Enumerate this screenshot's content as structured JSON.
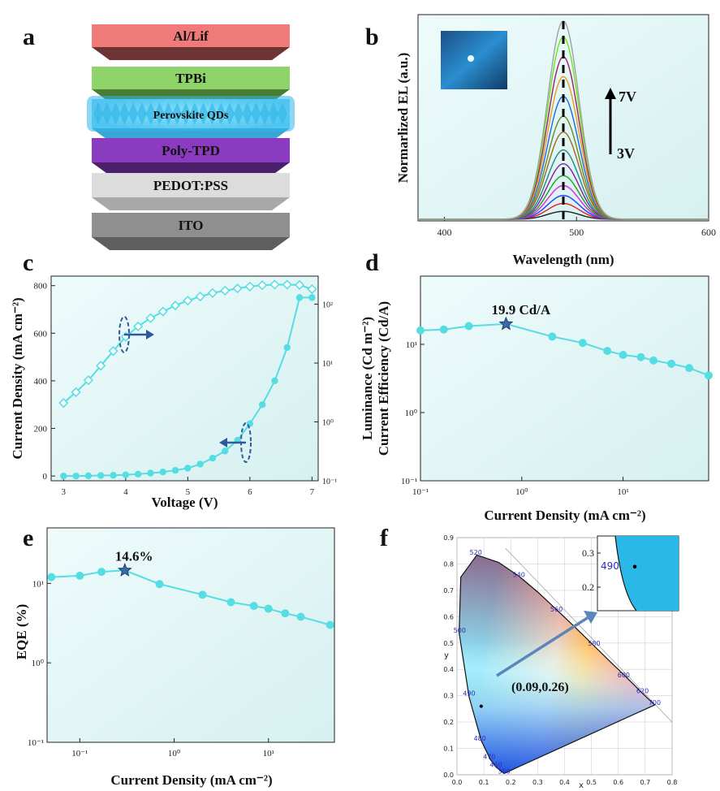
{
  "panel_letters": [
    "a",
    "b",
    "c",
    "d",
    "e",
    "f"
  ],
  "layers": [
    {
      "name": "Al/Lif",
      "color": "#f07a7a",
      "dark": "#6e3434"
    },
    {
      "name": "TPBi",
      "color": "#8fd46a",
      "dark": "#4a7d34"
    },
    {
      "name": "Perovskite QDs",
      "color": "#7fd8f5",
      "dark": "#3aa6d6"
    },
    {
      "name": "Poly-TPD",
      "color": "#8a3bbf",
      "dark": "#4a1f6b"
    },
    {
      "name": "PEDOT:PSS",
      "color": "#dcdcdc",
      "dark": "#a9a9a9"
    },
    {
      "name": "ITO",
      "color": "#8f8f8f",
      "dark": "#5e5e5e"
    }
  ],
  "chart_data": [
    {
      "panel": "b",
      "type": "line",
      "ylabel": "Normarlized EL (a.u.)",
      "xlabel": "Wavelength (nm)",
      "xlim": [
        380,
        600
      ],
      "xticks": [
        400,
        500,
        600
      ],
      "peak_nm": 490,
      "fwhm_nm": 28,
      "amplitudes": [
        0.04,
        0.08,
        0.12,
        0.17,
        0.22,
        0.28,
        0.35,
        0.44,
        0.52,
        0.62,
        0.72,
        0.82,
        0.92,
        1.0
      ],
      "annotations": {
        "top": "7V",
        "bottom": "3V"
      },
      "colors": [
        "#222222",
        "#e11e1e",
        "#1e3cff",
        "#e61ee6",
        "#1ea01e",
        "#8a1ea0",
        "#1e8a8a",
        "#a06a1e",
        "#6a8a1e",
        "#1e6ae6",
        "#e6a01e",
        "#a01e6a",
        "#6ae61e",
        "#a0a0a0"
      ]
    },
    {
      "panel": "c",
      "type": "line",
      "xlabel": "Voltage (V)",
      "ylabel": "Current Density (mA cm⁻²)",
      "xlim": [
        2.8,
        7.1
      ],
      "xticks": [
        3,
        4,
        5,
        6,
        7
      ],
      "ylim": [
        -20,
        840
      ],
      "yticks": [
        0,
        200,
        400,
        600,
        800
      ],
      "y2_log": true,
      "y2lim": [
        0.1,
        300
      ],
      "y2ticks": [
        {
          "v": 0.1,
          "l": "10⁻¹"
        },
        {
          "v": 1,
          "l": "10⁰"
        },
        {
          "v": 10,
          "l": "10¹"
        },
        {
          "v": 100,
          "l": "10²"
        }
      ],
      "series": [
        {
          "axis": "left",
          "marker": "circle",
          "x": [
            3.0,
            3.2,
            3.4,
            3.6,
            3.8,
            4.0,
            4.2,
            4.4,
            4.6,
            4.8,
            5.0,
            5.2,
            5.4,
            5.6,
            5.8,
            6.0,
            6.2,
            6.4,
            6.6,
            6.8,
            7.0
          ],
          "y": [
            0,
            0,
            1,
            2,
            3,
            5,
            8,
            12,
            17,
            24,
            33,
            50,
            75,
            105,
            150,
            220,
            300,
            400,
            540,
            750,
            750
          ]
        },
        {
          "axis": "right",
          "marker": "diamond",
          "x": [
            3.0,
            3.2,
            3.4,
            3.6,
            3.8,
            4.0,
            4.2,
            4.4,
            4.6,
            4.8,
            5.0,
            5.2,
            5.4,
            5.6,
            5.8,
            6.0,
            6.2,
            6.4,
            6.6,
            6.8,
            7.0
          ],
          "y": [
            2.1,
            3.2,
            5.1,
            9,
            16,
            28,
            42,
            58,
            75,
            95,
            115,
            135,
            155,
            170,
            185,
            200,
            210,
            215,
            215,
            212,
            180
          ]
        }
      ]
    },
    {
      "panel": "d",
      "type": "line",
      "xlabel": "Current Density (mA cm⁻²)",
      "ylabel": "Luminance (Cd m⁻²)\nCurrent Efficiency (Cd/A)",
      "xscale": "log",
      "yscale": "log",
      "xlim": [
        0.1,
        70
      ],
      "ylim": [
        0.1,
        100
      ],
      "xticks": [
        {
          "v": 0.1,
          "l": "10⁻¹"
        },
        {
          "v": 1,
          "l": "10⁰"
        },
        {
          "v": 10,
          "l": "10¹"
        }
      ],
      "yticks": [
        {
          "v": 0.1,
          "l": "10⁻¹"
        },
        {
          "v": 1,
          "l": "10⁰"
        },
        {
          "v": 10,
          "l": "10¹"
        }
      ],
      "annotation": "19.9 Cd/A",
      "x": [
        0.1,
        0.17,
        0.3,
        0.7,
        2,
        4,
        7,
        10,
        15,
        20,
        30,
        45,
        70
      ],
      "y": [
        16,
        16.5,
        18.5,
        19.9,
        13,
        10.5,
        8,
        7,
        6.5,
        5.8,
        5.2,
        4.5,
        3.5
      ],
      "star_index": 3
    },
    {
      "panel": "e",
      "type": "line",
      "xlabel": "Current Density (mA cm⁻²)",
      "ylabel": "EQE (%)",
      "xscale": "log",
      "yscale": "log",
      "xlim": [
        0.045,
        50
      ],
      "ylim": [
        0.1,
        50
      ],
      "xticks": [
        {
          "v": 0.1,
          "l": "10⁻¹"
        },
        {
          "v": 1,
          "l": "10⁰"
        },
        {
          "v": 10,
          "l": "10¹"
        }
      ],
      "yticks": [
        {
          "v": 0.1,
          "l": "10⁻¹"
        },
        {
          "v": 1,
          "l": "10⁰"
        },
        {
          "v": 10,
          "l": "10¹"
        }
      ],
      "annotation": "14.6%",
      "x": [
        0.05,
        0.1,
        0.17,
        0.3,
        0.7,
        2,
        4,
        7,
        10,
        15,
        22,
        45
      ],
      "y": [
        12,
        12.5,
        14,
        14.6,
        9.8,
        7.2,
        5.8,
        5.2,
        4.8,
        4.2,
        3.8,
        3.0
      ],
      "star_index": 3
    },
    {
      "panel": "f",
      "type": "scatter",
      "xlabel": "x",
      "ylabel": "y",
      "xlim": [
        0,
        0.8
      ],
      "ylim": [
        0,
        0.9
      ],
      "xticks": [
        0.0,
        0.1,
        0.2,
        0.3,
        0.4,
        0.5,
        0.6,
        0.7,
        0.8
      ],
      "yticks": [
        0.0,
        0.1,
        0.2,
        0.3,
        0.4,
        0.5,
        0.6,
        0.7,
        0.8,
        0.9
      ],
      "point": {
        "x": 0.09,
        "y": 0.26
      },
      "annotation": "(0.09,0.26)",
      "wavelength_labels": [
        {
          "t": "520",
          "x": 0.07,
          "y": 0.835
        },
        {
          "t": "540",
          "x": 0.23,
          "y": 0.75
        },
        {
          "t": "560",
          "x": 0.37,
          "y": 0.62
        },
        {
          "t": "580",
          "x": 0.51,
          "y": 0.49
        },
        {
          "t": "600",
          "x": 0.62,
          "y": 0.37
        },
        {
          "t": "620",
          "x": 0.69,
          "y": 0.31
        },
        {
          "t": "700",
          "x": 0.735,
          "y": 0.265
        },
        {
          "t": "500",
          "x": 0.01,
          "y": 0.54
        },
        {
          "t": "490",
          "x": 0.045,
          "y": 0.3
        },
        {
          "t": "480",
          "x": 0.085,
          "y": 0.13
        },
        {
          "t": "470",
          "x": 0.12,
          "y": 0.06
        },
        {
          "t": "460",
          "x": 0.145,
          "y": 0.03
        },
        {
          "t": "380",
          "x": 0.175,
          "y": 0.005
        }
      ],
      "inset": {
        "yticks": [
          {
            "v": 0.2,
            "l": "0.2"
          },
          {
            "v": 0.3,
            "l": "0.3"
          }
        ],
        "label": "490"
      }
    }
  ]
}
